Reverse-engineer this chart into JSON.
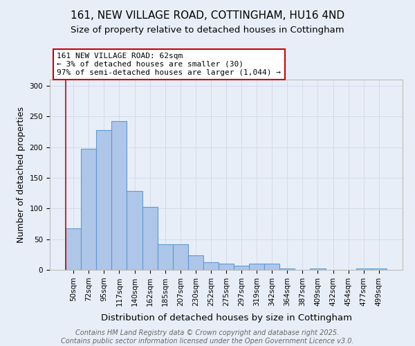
{
  "title": "161, NEW VILLAGE ROAD, COTTINGHAM, HU16 4ND",
  "subtitle": "Size of property relative to detached houses in Cottingham",
  "xlabel": "Distribution of detached houses by size in Cottingham",
  "ylabel": "Number of detached properties",
  "bar_labels": [
    "50sqm",
    "72sqm",
    "95sqm",
    "117sqm",
    "140sqm",
    "162sqm",
    "185sqm",
    "207sqm",
    "230sqm",
    "252sqm",
    "275sqm",
    "297sqm",
    "319sqm",
    "342sqm",
    "364sqm",
    "387sqm",
    "409sqm",
    "432sqm",
    "454sqm",
    "477sqm",
    "499sqm"
  ],
  "bar_values": [
    68,
    197,
    228,
    242,
    128,
    103,
    42,
    42,
    24,
    12,
    10,
    7,
    10,
    10,
    2,
    0,
    2,
    0,
    0,
    2,
    2
  ],
  "bar_color": "#aec6e8",
  "bar_edge_color": "#5b9bd5",
  "ylim": [
    0,
    310
  ],
  "yticks": [
    0,
    50,
    100,
    150,
    200,
    250,
    300
  ],
  "annotation_text": "161 NEW VILLAGE ROAD: 62sqm\n← 3% of detached houses are smaller (30)\n97% of semi-detached houses are larger (1,044) →",
  "annotation_box_color": "#ffffff",
  "annotation_box_edge": "#cc0000",
  "vline_color": "#cc0000",
  "footer_line1": "Contains HM Land Registry data © Crown copyright and database right 2025.",
  "footer_line2": "Contains public sector information licensed under the Open Government Licence v3.0.",
  "grid_color": "#d0d8e8",
  "background_color": "#e8eef8",
  "title_fontsize": 11,
  "subtitle_fontsize": 9.5,
  "tick_fontsize": 7.5,
  "ylabel_fontsize": 9,
  "xlabel_fontsize": 9.5,
  "footer_fontsize": 7,
  "annotation_fontsize": 8
}
